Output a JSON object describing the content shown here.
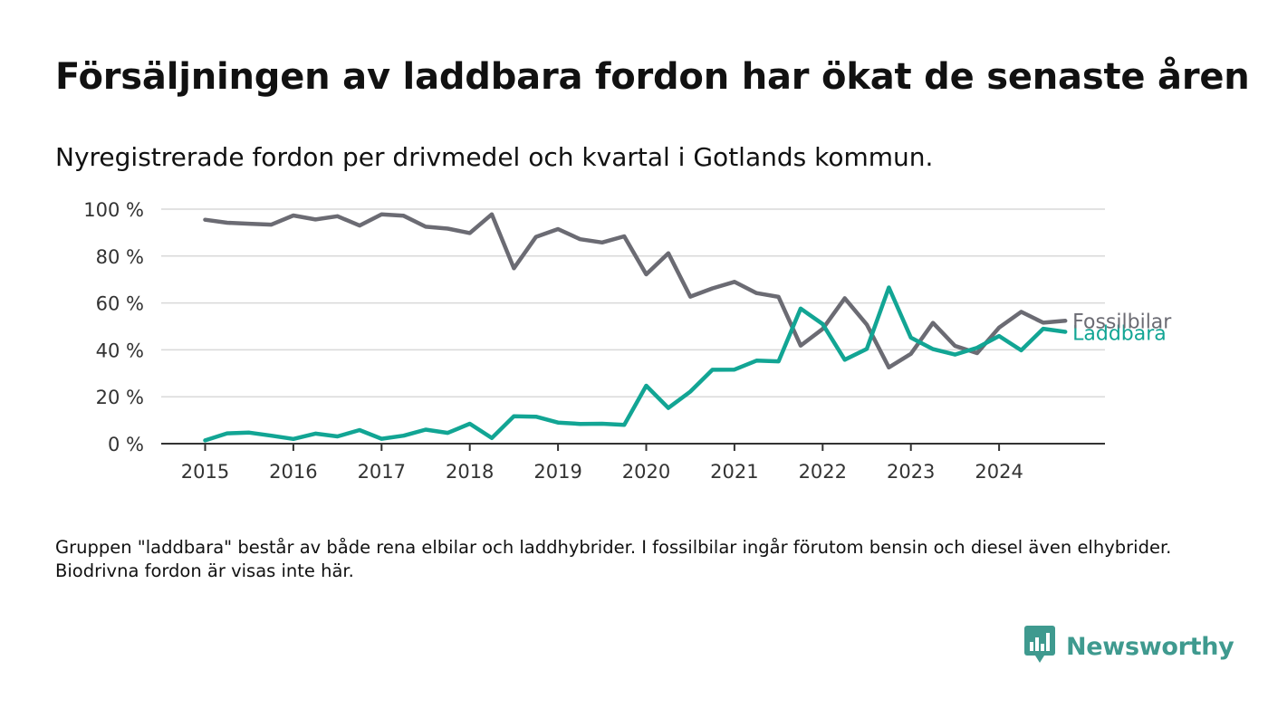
{
  "title": "Försäljningen av laddbara fordon har ökat de senaste åren",
  "subtitle": "Nyregistrerade fordon per drivmedel och kvartal i Gotlands kommun.",
  "footnote": "Gruppen \"laddbara\" består av både rena elbilar och laddhybrider. I fossilbilar ingår förutom bensin och diesel även elhybrider. Biodrivna fordon är visas inte här.",
  "brand": {
    "name": "Newsworthy",
    "icon": "newsworthy-logo-icon",
    "color": "#3f9a8f"
  },
  "chart_data": {
    "type": "line",
    "ylim": [
      0,
      100
    ],
    "y_ticks": [
      0,
      20,
      40,
      60,
      80,
      100
    ],
    "y_tick_labels": [
      "0 %",
      "20 %",
      "40 %",
      "60 %",
      "80 %",
      "100 %"
    ],
    "x_ticks": [
      "2015",
      "2016",
      "2017",
      "2018",
      "2019",
      "2020",
      "2021",
      "2022",
      "2023",
      "2024"
    ],
    "grid": true,
    "x": [
      "2015Q1",
      "2015Q2",
      "2015Q3",
      "2015Q4",
      "2016Q1",
      "2016Q2",
      "2016Q3",
      "2016Q4",
      "2017Q1",
      "2017Q2",
      "2017Q3",
      "2017Q4",
      "2018Q1",
      "2018Q2",
      "2018Q3",
      "2018Q4",
      "2019Q1",
      "2019Q2",
      "2019Q3",
      "2019Q4",
      "2020Q1",
      "2020Q2",
      "2020Q3",
      "2020Q4",
      "2021Q1",
      "2021Q2",
      "2021Q3",
      "2021Q4",
      "2022Q1",
      "2022Q2",
      "2022Q3",
      "2022Q4",
      "2023Q1",
      "2023Q2",
      "2023Q3",
      "2023Q4",
      "2024Q1",
      "2024Q2",
      "2024Q3",
      "2024Q4"
    ],
    "series": [
      {
        "name": "Fossilbilar",
        "color": "#6b6b73",
        "values": [
          95.5,
          94.2,
          93.8,
          93.4,
          97.3,
          95.6,
          97.0,
          93.0,
          97.8,
          97.2,
          92.5,
          91.7,
          89.8,
          97.8,
          74.8,
          88.2,
          91.5,
          87.2,
          85.8,
          88.4,
          72.2,
          81.2,
          62.7,
          66.2,
          69.0,
          64.2,
          62.6,
          41.8,
          48.9,
          62.0,
          50.8,
          32.5,
          38.3,
          51.5,
          41.7,
          38.6,
          49.5,
          56.2,
          51.6,
          52.4
        ]
      },
      {
        "name": "Laddbara",
        "color": "#12a594",
        "values": [
          1.4,
          4.4,
          4.7,
          3.4,
          2.0,
          4.3,
          3.1,
          5.8,
          2.1,
          3.4,
          6.0,
          4.6,
          8.5,
          2.4,
          11.7,
          11.5,
          9.0,
          8.4,
          8.5,
          8.0,
          24.7,
          15.2,
          22.2,
          31.5,
          31.6,
          35.4,
          35.1,
          57.6,
          51.0,
          35.8,
          40.4,
          66.6,
          45.2,
          40.3,
          38.0,
          40.9,
          45.9,
          39.8,
          49.0,
          47.7
        ]
      }
    ]
  }
}
